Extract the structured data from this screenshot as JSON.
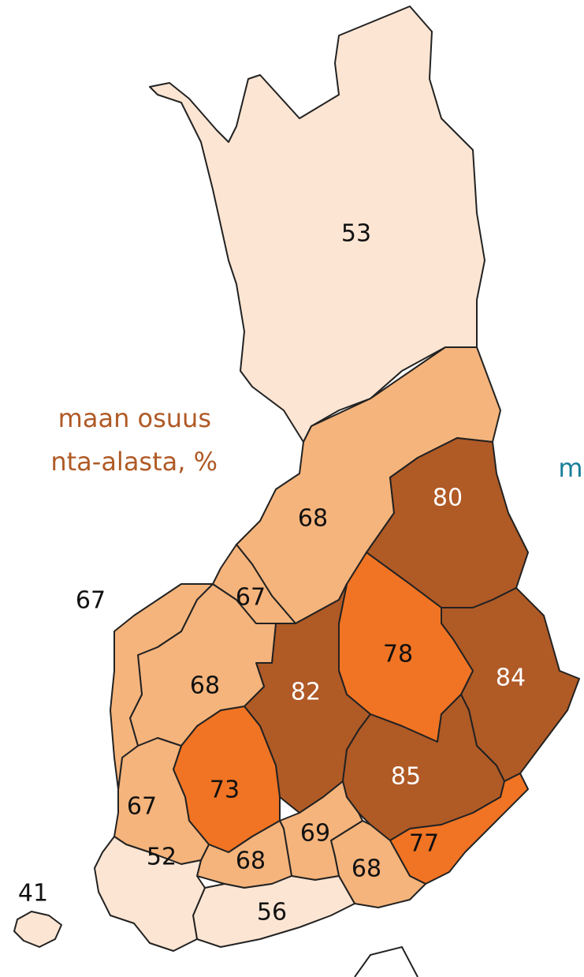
{
  "legend": {
    "lines": [
      "maan osuus",
      "nta-alasta, %"
    ],
    "cut_text": "m"
  },
  "regions": [
    {
      "value": 53,
      "color": "#fde5d3",
      "text_color": "#111111"
    },
    {
      "value": 68,
      "color": "#f5b47c",
      "text_color": "#111111"
    },
    {
      "value": 80,
      "color": "#b05a26",
      "text_color": "#ffffff"
    },
    {
      "value": 84,
      "color": "#b05a26",
      "text_color": "#ffffff"
    },
    {
      "value": 78,
      "color": "#f07424",
      "text_color": "#111111"
    },
    {
      "value": 82,
      "color": "#b05a26",
      "text_color": "#ffffff"
    },
    {
      "value": 85,
      "color": "#b05a26",
      "text_color": "#ffffff"
    },
    {
      "value": 77,
      "color": "#f07424",
      "text_color": "#111111"
    },
    {
      "value": 68,
      "color": "#f5b47c",
      "text_color": "#111111"
    },
    {
      "value": 69,
      "color": "#f5b47c",
      "text_color": "#111111"
    },
    {
      "value": 73,
      "color": "#f07424",
      "text_color": "#111111"
    },
    {
      "value": 68,
      "color": "#f5b47c",
      "text_color": "#111111"
    },
    {
      "value": 67,
      "color": "#f5b47c",
      "text_color": "#111111"
    },
    {
      "value": 68,
      "color": "#f5b47c",
      "text_color": "#111111"
    },
    {
      "value": 67,
      "color": "#f5b47c",
      "text_color": "#111111"
    },
    {
      "value": 67,
      "color": "#f5b47c",
      "text_color": "#111111"
    },
    {
      "value": 56,
      "color": "#fde5d3",
      "text_color": "#111111"
    },
    {
      "value": 52,
      "color": "#fde5d3",
      "text_color": "#111111"
    },
    {
      "value": 41,
      "color": "#fde5d3",
      "text_color": "#111111"
    }
  ]
}
